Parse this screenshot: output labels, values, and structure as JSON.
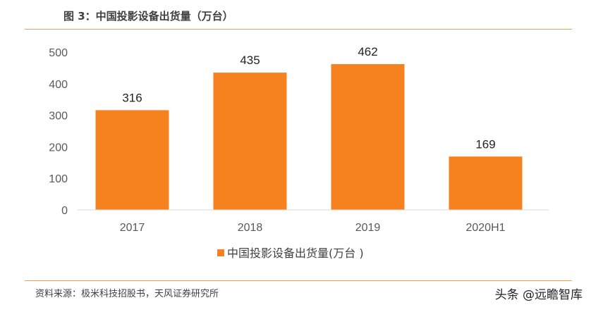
{
  "title": "图 3：中国投影设备出货量（万台）",
  "source": "资料来源：极米科技招股书，天风证券研究所",
  "watermark": "头条 @远瞻智库",
  "chart_data": {
    "type": "bar",
    "categories": [
      "2017",
      "2018",
      "2019",
      "2020H1"
    ],
    "series": [
      {
        "name": "中国投影设备出货量(万台 )",
        "values": [
          316,
          435,
          462,
          169
        ],
        "color": "#f5821f"
      }
    ],
    "ylim": [
      0,
      500
    ],
    "yticks": [
      0,
      100,
      200,
      300,
      400,
      500
    ],
    "grid": false,
    "legend": "bottom",
    "data_labels": true
  }
}
